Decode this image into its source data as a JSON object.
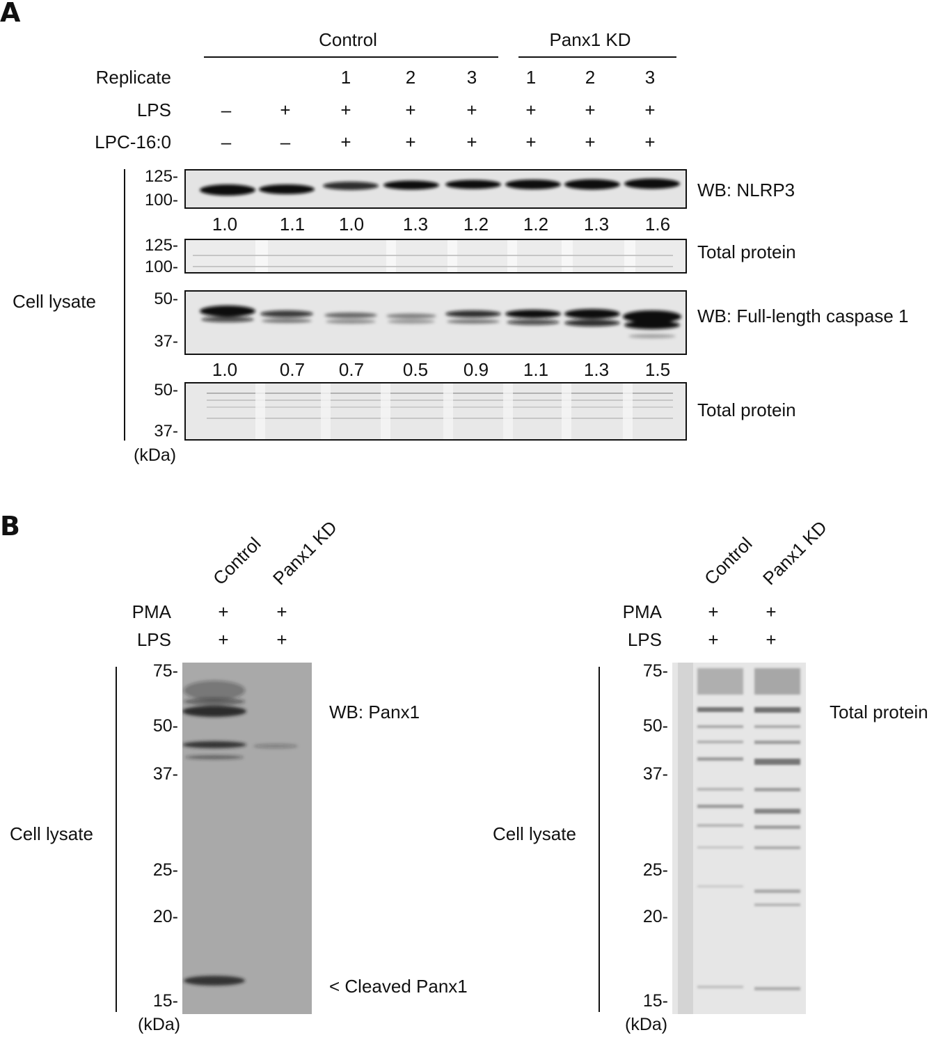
{
  "panelA": {
    "letter": "A",
    "groups": [
      "Control",
      "Panx1 KD"
    ],
    "rows": [
      {
        "label": "Replicate",
        "values": [
          "",
          "",
          "1",
          "2",
          "3",
          "1",
          "2",
          "3"
        ]
      },
      {
        "label": "LPS",
        "values": [
          "–",
          "+",
          "+",
          "+",
          "+",
          "+",
          "+",
          "+"
        ]
      },
      {
        "label": "LPC-16:0",
        "values": [
          "–",
          "–",
          "+",
          "+",
          "+",
          "+",
          "+",
          "+"
        ]
      }
    ],
    "side_label": "Cell lysate",
    "blots": [
      {
        "name": "WB: NLRP3",
        "markers": [
          "125-",
          "100-"
        ]
      },
      {
        "name": "Total protein",
        "markers": [
          "125-",
          "100-"
        ]
      },
      {
        "name": "WB: Full-length caspase 1",
        "markers": [
          "50-",
          "37-"
        ]
      },
      {
        "name": "Total protein",
        "markers": [
          "50-",
          "37-"
        ]
      }
    ],
    "nlrp3_quant": [
      "1.0",
      "1.1",
      "1.0",
      "1.3",
      "1.2",
      "1.2",
      "1.3",
      "1.6"
    ],
    "casp1_quant": [
      "1.0",
      "0.7",
      "0.7",
      "0.5",
      "0.9",
      "1.1",
      "1.3",
      "1.5"
    ],
    "unit": "(kDa)"
  },
  "panelB": {
    "letter": "B",
    "lanes": [
      "Control",
      "Panx1 KD"
    ],
    "rows": [
      {
        "label": "PMA",
        "values": [
          "+",
          "+"
        ]
      },
      {
        "label": "LPS",
        "values": [
          "+",
          "+"
        ]
      }
    ],
    "side_label": "Cell lysate",
    "markers": [
      "75-",
      "50-",
      "37-",
      "25-",
      "20-",
      "15-"
    ],
    "left_blot_label": "WB: Panx1",
    "cleaved_label": "< Cleaved Panx1",
    "right_blot_label": "Total protein",
    "unit": "(kDa)"
  }
}
